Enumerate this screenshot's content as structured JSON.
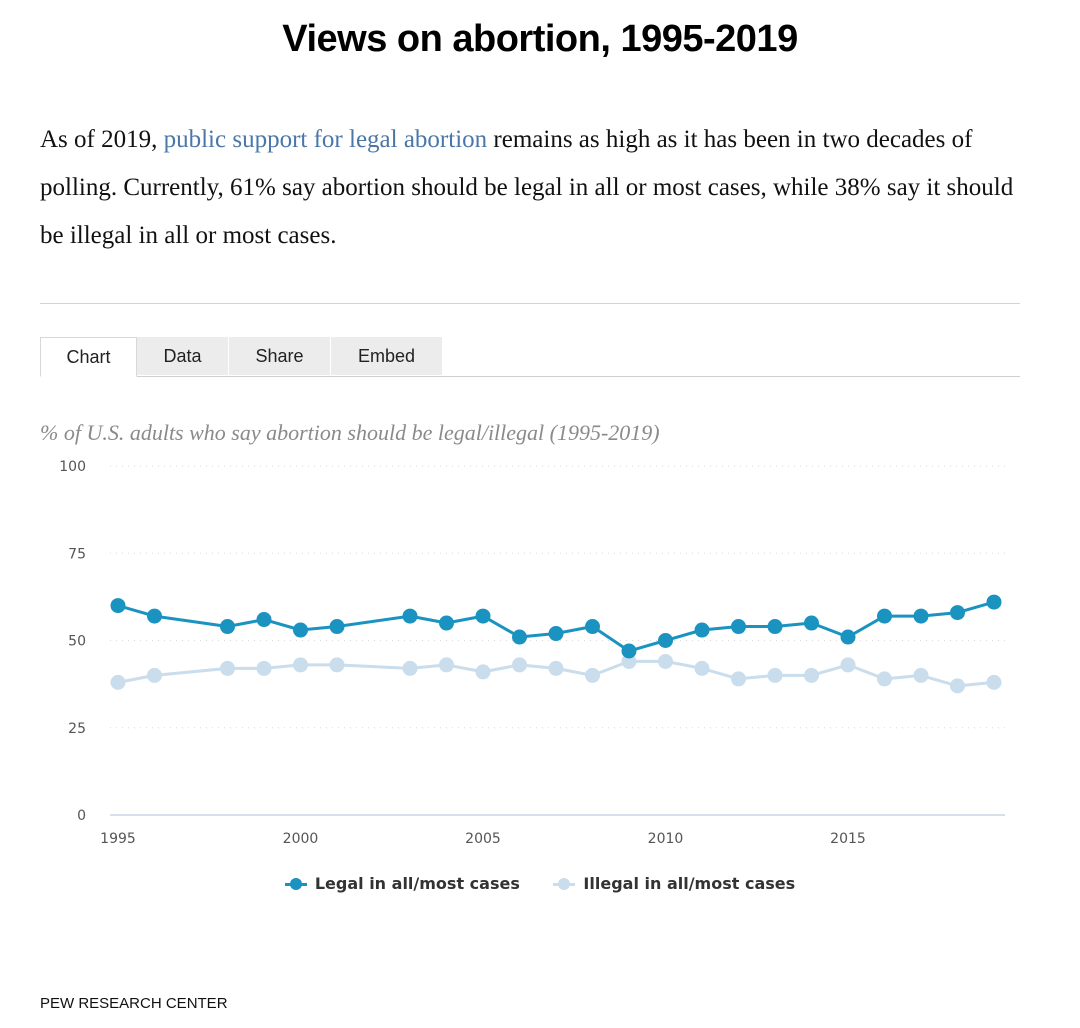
{
  "page": {
    "title": "Views on abortion, 1995-2019",
    "intro": {
      "before_link": "As of 2019, ",
      "link_text": "public support for legal abortion",
      "after_link": " remains as high as it has been in two decades of polling. Currently, 61% say abortion should be legal in all or most cases, while 38% say it should be illegal in all or most cases."
    },
    "tabs": [
      {
        "label": "Chart",
        "active": true
      },
      {
        "label": "Data",
        "active": false
      },
      {
        "label": "Share",
        "active": false
      },
      {
        "label": "Embed",
        "active": false
      }
    ],
    "source": "PEW RESEARCH CENTER",
    "colors": {
      "link": "#4a77a8",
      "legal": "#1b93c0",
      "illegal": "#c9ddec"
    }
  },
  "chart_data": {
    "type": "line",
    "title": "% of U.S. adults who say abortion should be legal/illegal (1995-2019)",
    "xlabel": "",
    "ylabel": "",
    "ylim": [
      0,
      100
    ],
    "xlim": [
      1995,
      2019
    ],
    "yticks": [
      0,
      25,
      50,
      75,
      100
    ],
    "xticks": [
      1995,
      2000,
      2005,
      2010,
      2015
    ],
    "grid": true,
    "legend_position": "bottom-center",
    "x": [
      1995,
      1996,
      1998,
      1999,
      2000,
      2001,
      2003,
      2004,
      2005,
      2006,
      2007,
      2008,
      2009,
      2010,
      2011,
      2012,
      2013,
      2014,
      2015,
      2016,
      2017,
      2018,
      2019
    ],
    "series": [
      {
        "name": "Legal in all/most cases",
        "color": "#1b93c0",
        "values": [
          60,
          57,
          54,
          56,
          53,
          54,
          57,
          55,
          57,
          51,
          52,
          54,
          47,
          50,
          53,
          54,
          54,
          55,
          51,
          57,
          57,
          58,
          61
        ]
      },
      {
        "name": "Illegal in all/most cases",
        "color": "#c9ddec",
        "values": [
          38,
          40,
          42,
          42,
          43,
          43,
          42,
          43,
          41,
          43,
          42,
          40,
          44,
          44,
          42,
          39,
          40,
          40,
          43,
          39,
          40,
          37,
          38
        ]
      }
    ]
  }
}
